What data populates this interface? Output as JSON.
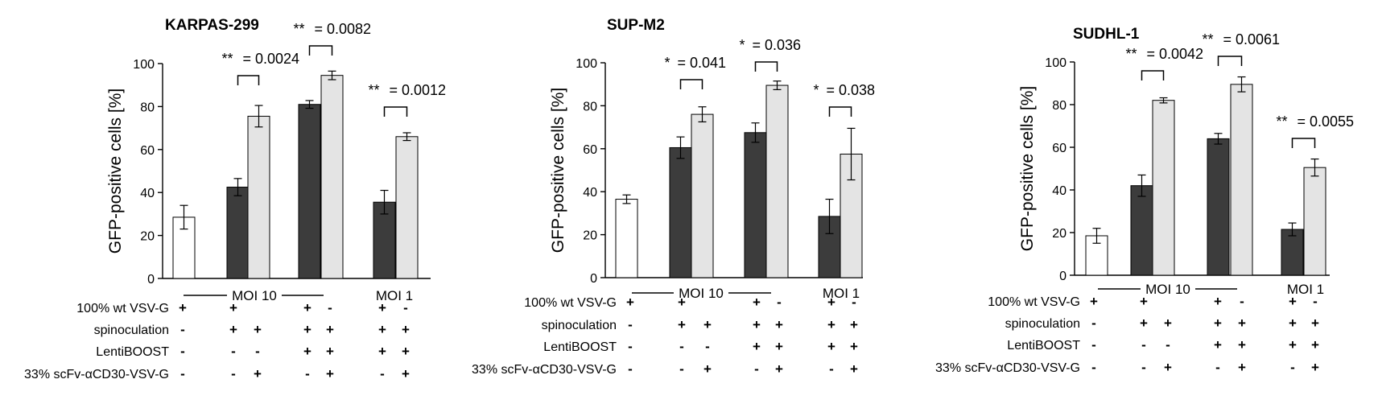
{
  "figure": {
    "bar_colors": {
      "open": "#ffffff",
      "dark": "#3c3c3c",
      "light": "#e4e4e4",
      "stroke": "#000000"
    }
  },
  "chart_data": [
    {
      "type": "bar",
      "title": "KARPAS-299",
      "xlabel": "",
      "ylabel": "GFP-positive cells [%]",
      "ylim": [
        0,
        100
      ],
      "yticks": [
        0,
        20,
        40,
        60,
        80,
        100
      ],
      "bars": [
        {
          "style": "open",
          "value": 28.5,
          "error": 5.5
        },
        {
          "style": "dark",
          "value": 42.5,
          "error": 4
        },
        {
          "style": "light",
          "value": 75.5,
          "error": 5
        },
        {
          "style": "dark",
          "value": 81,
          "error": 1.8
        },
        {
          "style": "light",
          "value": 94.5,
          "error": 2
        },
        {
          "style": "dark",
          "value": 35.5,
          "error": 5.5
        },
        {
          "style": "light",
          "value": 66,
          "error": 1.8
        }
      ],
      "comparisons": [
        {
          "from": 1,
          "to": 2,
          "stars": "**",
          "p_text": "= 0.0024"
        },
        {
          "from": 3,
          "to": 4,
          "stars": "**",
          "p_text": "= 0.0082"
        },
        {
          "from": 5,
          "to": 6,
          "stars": "**",
          "p_text": "= 0.0012"
        }
      ],
      "groups": [
        {
          "label": "MOI 10"
        },
        {
          "label": "MOI 1"
        }
      ],
      "conditions": [
        {
          "label": "100% wt VSV-G",
          "marks": [
            "+",
            "+",
            "",
            "+",
            "-",
            "+",
            "-"
          ]
        },
        {
          "label": "spinoculation",
          "marks": [
            "-",
            "+",
            "+",
            "+",
            "+",
            "+",
            "+"
          ]
        },
        {
          "label": "LentiBOOST",
          "marks": [
            "-",
            "-",
            "-",
            "+",
            "+",
            "+",
            "+"
          ]
        },
        {
          "label": "33% scFv-αCD30-VSV-G",
          "marks": [
            "-",
            "-",
            "+",
            "-",
            "+",
            "-",
            "+"
          ]
        }
      ]
    },
    {
      "type": "bar",
      "title": "SUP-M2",
      "xlabel": "",
      "ylabel": "GFP-positive cells [%]",
      "ylim": [
        0,
        100
      ],
      "yticks": [
        0,
        20,
        40,
        60,
        80,
        100
      ],
      "bars": [
        {
          "style": "open",
          "value": 36.5,
          "error": 2
        },
        {
          "style": "dark",
          "value": 60.5,
          "error": 5
        },
        {
          "style": "light",
          "value": 76,
          "error": 3.5
        },
        {
          "style": "dark",
          "value": 67.5,
          "error": 4.5
        },
        {
          "style": "light",
          "value": 89.5,
          "error": 2
        },
        {
          "style": "dark",
          "value": 28.5,
          "error": 8
        },
        {
          "style": "light",
          "value": 57.5,
          "error": 12
        }
      ],
      "comparisons": [
        {
          "from": 1,
          "to": 2,
          "stars": "*",
          "p_text": "= 0.041"
        },
        {
          "from": 3,
          "to": 4,
          "stars": "*",
          "p_text": "= 0.036"
        },
        {
          "from": 5,
          "to": 6,
          "stars": "*",
          "p_text": "= 0.038"
        }
      ],
      "groups": [
        {
          "label": "MOI 10"
        },
        {
          "label": "MOI 1"
        }
      ],
      "conditions": [
        {
          "label": "100% wt VSV-G",
          "marks": [
            "+",
            "+",
            "",
            "+",
            "-",
            "+",
            "-"
          ]
        },
        {
          "label": "spinoculation",
          "marks": [
            "-",
            "+",
            "+",
            "+",
            "+",
            "+",
            "+"
          ]
        },
        {
          "label": "LentiBOOST",
          "marks": [
            "-",
            "-",
            "-",
            "+",
            "+",
            "+",
            "+"
          ]
        },
        {
          "label": "33% scFv-αCD30-VSV-G",
          "marks": [
            "-",
            "-",
            "+",
            "-",
            "+",
            "-",
            "+"
          ]
        }
      ]
    },
    {
      "type": "bar",
      "title": "SUDHL-1",
      "xlabel": "",
      "ylabel": "GFP-positive cells [%]",
      "ylim": [
        0,
        100
      ],
      "yticks": [
        0,
        20,
        40,
        60,
        80,
        100
      ],
      "bars": [
        {
          "style": "open",
          "value": 18.5,
          "error": 3.5
        },
        {
          "style": "dark",
          "value": 42,
          "error": 5
        },
        {
          "style": "light",
          "value": 82,
          "error": 1.2
        },
        {
          "style": "dark",
          "value": 64,
          "error": 2.5
        },
        {
          "style": "light",
          "value": 89.5,
          "error": 3.5
        },
        {
          "style": "dark",
          "value": 21.5,
          "error": 3
        },
        {
          "style": "light",
          "value": 50.5,
          "error": 4
        }
      ],
      "comparisons": [
        {
          "from": 1,
          "to": 2,
          "stars": "**",
          "p_text": "= 0.0042"
        },
        {
          "from": 3,
          "to": 4,
          "stars": "**",
          "p_text": "= 0.0061"
        },
        {
          "from": 5,
          "to": 6,
          "stars": "**",
          "p_text": "= 0.0055"
        }
      ],
      "groups": [
        {
          "label": "MOI 10"
        },
        {
          "label": "MOI 1"
        }
      ],
      "conditions": [
        {
          "label": "100% wt VSV-G",
          "marks": [
            "+",
            "+",
            "",
            "+",
            "-",
            "+",
            "-"
          ]
        },
        {
          "label": "spinoculation",
          "marks": [
            "-",
            "+",
            "+",
            "+",
            "+",
            "+",
            "+"
          ]
        },
        {
          "label": "LentiBOOST",
          "marks": [
            "-",
            "-",
            "-",
            "+",
            "+",
            "+",
            "+"
          ]
        },
        {
          "label": "33% scFv-αCD30-VSV-G",
          "marks": [
            "-",
            "-",
            "+",
            "-",
            "+",
            "-",
            "+"
          ]
        }
      ]
    }
  ]
}
